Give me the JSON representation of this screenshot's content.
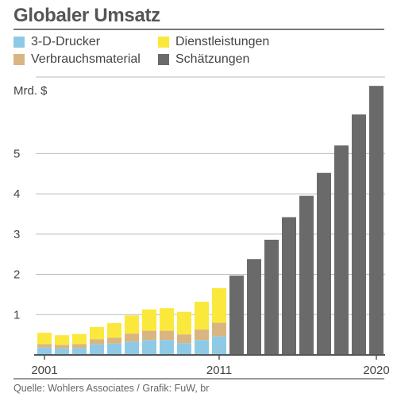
{
  "header": {
    "title": "Globaler Umsatz"
  },
  "legend": [
    {
      "label": "3-D-Drucker",
      "color_key": "printers"
    },
    {
      "label": "Verbrauchsmaterial",
      "color_key": "consumables"
    },
    {
      "label": "Dienstleistungen",
      "color_key": "services"
    },
    {
      "label": "Schätzungen",
      "color_key": "estimates"
    }
  ],
  "colors": {
    "printers": "#8ecae6",
    "consumables": "#d9b681",
    "services": "#fbe83c",
    "estimates": "#6a6a6a"
  },
  "footer": {
    "source": "Quelle: Wohlers Associates / Grafik: FuW, br"
  },
  "chart_data": {
    "type": "bar",
    "stacked": true,
    "title": "Globaler Umsatz",
    "ylabel": "Mrd. $",
    "ylim": [
      0,
      6.9
    ],
    "yticks": [
      1,
      2,
      3,
      4,
      5
    ],
    "grid": true,
    "legend_position": "top",
    "x": [
      2001,
      2002,
      2003,
      2004,
      2005,
      2006,
      2007,
      2008,
      2009,
      2010,
      2011,
      2012,
      2013,
      2014,
      2015,
      2016,
      2017,
      2018,
      2019,
      2020
    ],
    "xtick_labels": [
      "2001",
      "2011",
      "2020"
    ],
    "series": [
      {
        "name": "3-D-Drucker",
        "color_key": "printers",
        "values": [
          0.18,
          0.16,
          0.17,
          0.26,
          0.28,
          0.33,
          0.37,
          0.37,
          0.29,
          0.37,
          0.46,
          null,
          null,
          null,
          null,
          null,
          null,
          null,
          null,
          null
        ]
      },
      {
        "name": "Verbrauchsmaterial",
        "color_key": "consumables",
        "values": [
          0.09,
          0.09,
          0.1,
          0.13,
          0.15,
          0.2,
          0.23,
          0.23,
          0.22,
          0.26,
          0.34,
          null,
          null,
          null,
          null,
          null,
          null,
          null,
          null,
          null
        ]
      },
      {
        "name": "Dienstleistungen",
        "color_key": "services",
        "values": [
          0.28,
          0.24,
          0.25,
          0.3,
          0.36,
          0.45,
          0.53,
          0.56,
          0.56,
          0.69,
          0.86,
          null,
          null,
          null,
          null,
          null,
          null,
          null,
          null,
          null
        ]
      },
      {
        "name": "Schätzungen",
        "color_key": "estimates",
        "values": [
          null,
          null,
          null,
          null,
          null,
          null,
          null,
          null,
          null,
          null,
          null,
          1.97,
          2.38,
          2.86,
          3.42,
          3.95,
          4.52,
          5.2,
          5.97,
          6.68
        ]
      }
    ]
  }
}
